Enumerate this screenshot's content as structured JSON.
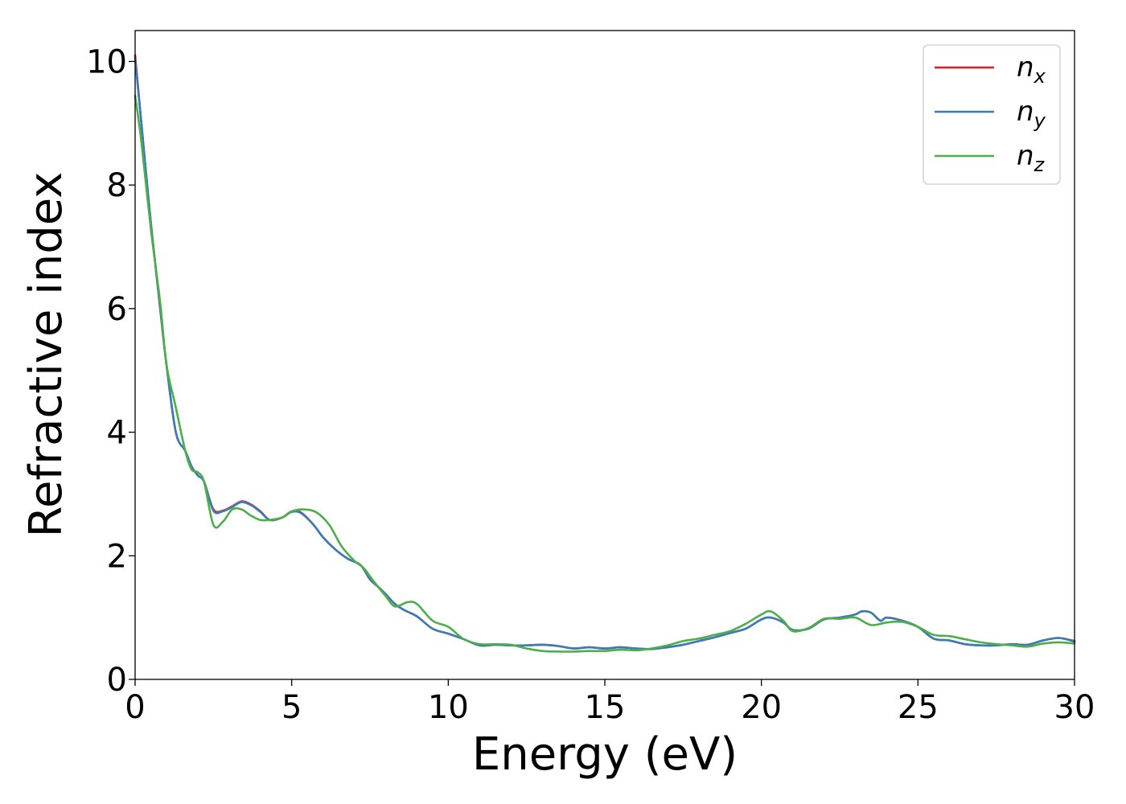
{
  "chart_data": {
    "type": "line",
    "xlabel": "Energy (eV)",
    "ylabel": "Refractive index",
    "xlim": [
      0,
      30
    ],
    "ylim": [
      0,
      10.5
    ],
    "xticks": [
      0,
      5,
      10,
      15,
      20,
      25,
      30
    ],
    "yticks": [
      0,
      2,
      4,
      6,
      8,
      10
    ],
    "grid": false,
    "legend_position": "top-right",
    "series": [
      {
        "name": "n_x",
        "label_main": "n",
        "label_sub": "x",
        "color": "#e41a1c",
        "x": [
          0,
          0.2,
          0.5,
          0.8,
          1.0,
          1.3,
          1.6,
          1.8,
          2.0,
          2.2,
          2.5,
          2.8,
          3.1,
          3.4,
          3.7,
          4.0,
          4.3,
          4.7,
          5.0,
          5.3,
          5.7,
          6.0,
          6.4,
          6.8,
          7.2,
          7.5,
          7.8,
          8.0,
          8.3,
          8.6,
          9.0,
          9.5,
          10.0,
          10.5,
          11.0,
          11.5,
          12.0,
          12.5,
          13.0,
          13.5,
          14.0,
          14.5,
          15.0,
          15.5,
          16.0,
          16.5,
          17.0,
          17.5,
          18.0,
          18.5,
          19.0,
          19.5,
          20.0,
          20.3,
          20.7,
          21.0,
          21.5,
          22.0,
          22.5,
          23.0,
          23.2,
          23.5,
          23.8,
          24.0,
          24.5,
          25.0,
          25.5,
          26.0,
          26.5,
          27.0,
          27.5,
          28.0,
          28.5,
          29.0,
          29.5,
          30.0
        ],
        "values": [
          10.1,
          9.0,
          7.4,
          6.0,
          5.1,
          4.0,
          3.7,
          3.45,
          3.3,
          3.2,
          2.75,
          2.73,
          2.8,
          2.88,
          2.83,
          2.72,
          2.58,
          2.62,
          2.72,
          2.7,
          2.5,
          2.3,
          2.1,
          1.95,
          1.85,
          1.62,
          1.48,
          1.38,
          1.22,
          1.12,
          1.02,
          0.82,
          0.74,
          0.65,
          0.55,
          0.56,
          0.55,
          0.55,
          0.56,
          0.54,
          0.5,
          0.52,
          0.5,
          0.52,
          0.5,
          0.49,
          0.52,
          0.56,
          0.62,
          0.68,
          0.75,
          0.82,
          0.97,
          1.0,
          0.92,
          0.8,
          0.82,
          0.97,
          1.0,
          1.05,
          1.1,
          1.08,
          0.95,
          1.0,
          0.95,
          0.85,
          0.66,
          0.63,
          0.57,
          0.55,
          0.55,
          0.57,
          0.56,
          0.63,
          0.67,
          0.62
        ]
      },
      {
        "name": "n_y",
        "label_main": "n",
        "label_sub": "y",
        "color": "#377eb8",
        "x": [
          0,
          0.2,
          0.5,
          0.8,
          1.0,
          1.3,
          1.6,
          1.8,
          2.0,
          2.2,
          2.5,
          2.8,
          3.1,
          3.4,
          3.7,
          4.0,
          4.3,
          4.7,
          5.0,
          5.3,
          5.7,
          6.0,
          6.4,
          6.8,
          7.2,
          7.5,
          7.8,
          8.0,
          8.3,
          8.6,
          9.0,
          9.5,
          10.0,
          10.5,
          11.0,
          11.5,
          12.0,
          12.5,
          13.0,
          13.5,
          14.0,
          14.5,
          15.0,
          15.5,
          16.0,
          16.5,
          17.0,
          17.5,
          18.0,
          18.5,
          19.0,
          19.5,
          20.0,
          20.3,
          20.7,
          21.0,
          21.5,
          22.0,
          22.5,
          23.0,
          23.2,
          23.5,
          23.8,
          24.0,
          24.5,
          25.0,
          25.5,
          26.0,
          26.5,
          27.0,
          27.5,
          28.0,
          28.5,
          29.0,
          29.5,
          30.0
        ],
        "values": [
          10.05,
          9.0,
          7.4,
          6.0,
          5.1,
          4.0,
          3.7,
          3.45,
          3.3,
          3.2,
          2.73,
          2.72,
          2.79,
          2.87,
          2.82,
          2.71,
          2.58,
          2.62,
          2.71,
          2.69,
          2.5,
          2.3,
          2.1,
          1.95,
          1.85,
          1.62,
          1.48,
          1.38,
          1.22,
          1.12,
          1.02,
          0.82,
          0.74,
          0.65,
          0.55,
          0.56,
          0.55,
          0.55,
          0.56,
          0.54,
          0.5,
          0.52,
          0.5,
          0.52,
          0.5,
          0.49,
          0.52,
          0.56,
          0.62,
          0.68,
          0.75,
          0.82,
          0.97,
          1.0,
          0.92,
          0.8,
          0.82,
          0.97,
          1.0,
          1.05,
          1.1,
          1.08,
          0.95,
          1.0,
          0.95,
          0.85,
          0.66,
          0.63,
          0.57,
          0.55,
          0.55,
          0.57,
          0.56,
          0.63,
          0.67,
          0.61
        ]
      },
      {
        "name": "n_z",
        "label_main": "n",
        "label_sub": "z",
        "color": "#4daf4a",
        "x": [
          0,
          0.2,
          0.5,
          0.8,
          1.0,
          1.3,
          1.6,
          1.8,
          2.0,
          2.2,
          2.5,
          2.8,
          3.1,
          3.4,
          3.7,
          4.0,
          4.3,
          4.7,
          5.0,
          5.4,
          5.8,
          6.2,
          6.6,
          7.0,
          7.3,
          7.6,
          8.0,
          8.3,
          8.7,
          9.0,
          9.5,
          10.0,
          10.5,
          11.0,
          11.5,
          12.0,
          12.5,
          13.0,
          13.5,
          14.0,
          14.5,
          15.0,
          15.5,
          16.0,
          16.5,
          17.0,
          17.5,
          18.0,
          18.5,
          19.0,
          19.5,
          20.0,
          20.3,
          20.7,
          21.0,
          21.5,
          22.0,
          22.5,
          23.0,
          23.5,
          24.0,
          24.5,
          25.0,
          25.5,
          26.0,
          26.5,
          27.0,
          27.5,
          28.0,
          28.5,
          29.0,
          29.5,
          30.0
        ],
        "values": [
          9.45,
          8.7,
          7.3,
          6.1,
          5.1,
          4.4,
          3.7,
          3.4,
          3.35,
          3.2,
          2.5,
          2.55,
          2.75,
          2.75,
          2.65,
          2.58,
          2.58,
          2.62,
          2.72,
          2.75,
          2.7,
          2.5,
          2.15,
          1.92,
          1.8,
          1.6,
          1.35,
          1.18,
          1.25,
          1.22,
          0.95,
          0.85,
          0.65,
          0.57,
          0.57,
          0.56,
          0.5,
          0.46,
          0.45,
          0.45,
          0.46,
          0.46,
          0.48,
          0.47,
          0.5,
          0.55,
          0.62,
          0.66,
          0.72,
          0.78,
          0.9,
          1.05,
          1.1,
          0.95,
          0.78,
          0.83,
          0.98,
          0.98,
          1.0,
          0.88,
          0.92,
          0.93,
          0.85,
          0.72,
          0.7,
          0.65,
          0.6,
          0.57,
          0.55,
          0.53,
          0.58,
          0.6,
          0.58
        ]
      }
    ]
  }
}
